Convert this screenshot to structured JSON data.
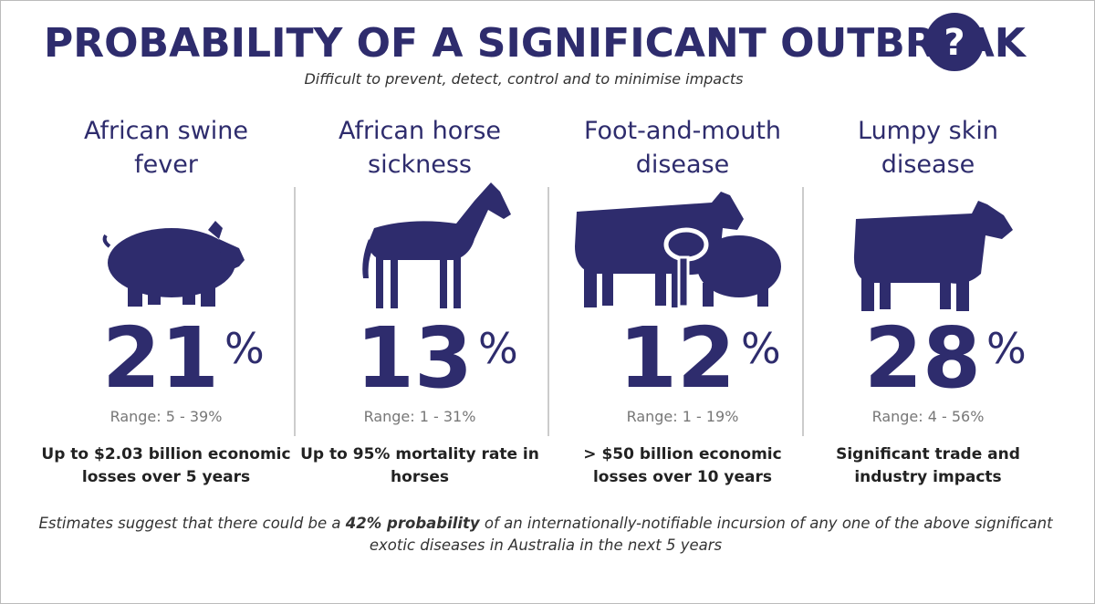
{
  "header": {
    "title": "PROBABILITY OF A SIGNIFICANT OUTBREAK",
    "icon": "?",
    "subtitle": "Difficult to prevent, detect, control and to minimise impacts"
  },
  "diseases": [
    {
      "name": [
        "African swine",
        "fever"
      ],
      "percent": "21",
      "unit": "%",
      "range": "Range: 5 - 39%",
      "impact": [
        "Up to $2.03 billion economic",
        "losses over 5 years"
      ]
    },
    {
      "name": [
        "African horse",
        "sickness"
      ],
      "percent": "13",
      "unit": "%",
      "range": "Range: 1 - 31%",
      "impact": [
        "Up to 95% mortality rate in",
        "horses"
      ]
    },
    {
      "name": [
        "Foot-and-mouth",
        "disease"
      ],
      "percent": "12",
      "unit": "%",
      "range": "Range: 1 - 19%",
      "impact": [
        "> $50 billion economic",
        "losses over 10 years"
      ]
    },
    {
      "name": [
        "Lumpy skin",
        "disease"
      ],
      "percent": "28",
      "unit": "%",
      "range": "Range: 4 - 56%",
      "impact": [
        "Significant trade and",
        "industry impacts"
      ]
    }
  ],
  "footer": {
    "parts": [
      "Estimates suggest that there could be a ",
      "42% probability",
      " of an internationally-notifiable incursion of any one of the above significant"
    ],
    "line2": "exotic diseases in Australia in the next 5 years"
  }
}
